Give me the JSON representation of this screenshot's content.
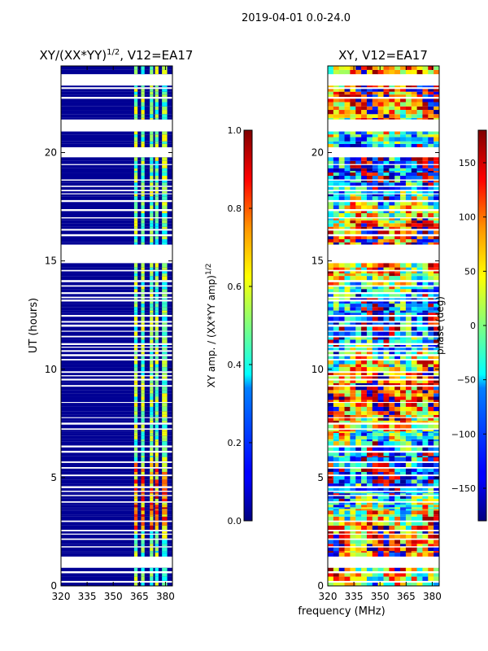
{
  "suptitle": "2019-04-01 0.0-24.0",
  "xlabel_shared": "frequency (MHz)",
  "chart_data": [
    {
      "type": "heatmap",
      "title": "XY/(XX*YY)",
      "title_sup": "1/2",
      "title_suffix": ", V12=EA17",
      "xlabel": "",
      "ylabel": "UT (hours)",
      "x_range": [
        320,
        384
      ],
      "y_range": [
        0,
        24
      ],
      "xticks": [
        320,
        335,
        350,
        365,
        380
      ],
      "yticks": [
        0,
        5,
        10,
        15,
        20
      ],
      "colorbar": {
        "label": "XY amp. / (XX*YY amp)",
        "label_sup": "1/2",
        "range": [
          0.0,
          1.0
        ],
        "ticks": [
          "0.0",
          "0.2",
          "0.4",
          "0.6",
          "0.8",
          "1.0"
        ],
        "tick_values": [
          0.0,
          0.2,
          0.4,
          0.6,
          0.8,
          1.0
        ],
        "colormap": "jet"
      },
      "background_value": 0.02,
      "bright_frequency_bands_MHz": [
        [
          362,
          364
        ],
        [
          366,
          368
        ],
        [
          371,
          373
        ],
        [
          374,
          376
        ],
        [
          378,
          381
        ]
      ],
      "high_value_hours": [
        2.5,
        5.5
      ],
      "blank_hour_bands": [
        [
          0.9,
          1.3
        ],
        [
          15.0,
          15.7
        ],
        [
          19.9,
          20.2
        ],
        [
          21.0,
          21.5
        ],
        [
          23.2,
          23.4
        ]
      ]
    },
    {
      "type": "heatmap",
      "title": "XY, V12=EA17",
      "xlabel": "",
      "ylabel": "",
      "x_range": [
        320,
        384
      ],
      "y_range": [
        0,
        24
      ],
      "xticks": [
        320,
        335,
        350,
        365,
        380
      ],
      "yticks": [
        0,
        5,
        10,
        15,
        20
      ],
      "colorbar": {
        "label": "phase (deg)",
        "range": [
          -180,
          180
        ],
        "ticks": [
          "−150",
          "−100",
          "−50",
          "0",
          "50",
          "100",
          "150"
        ],
        "tick_values": [
          -150,
          -100,
          -50,
          0,
          50,
          100,
          150
        ],
        "colormap": "jet"
      },
      "blank_hour_bands": [
        [
          0.9,
          1.3
        ],
        [
          15.0,
          15.7
        ],
        [
          19.9,
          20.2
        ],
        [
          21.0,
          21.5
        ],
        [
          23.2,
          23.4
        ]
      ]
    }
  ]
}
